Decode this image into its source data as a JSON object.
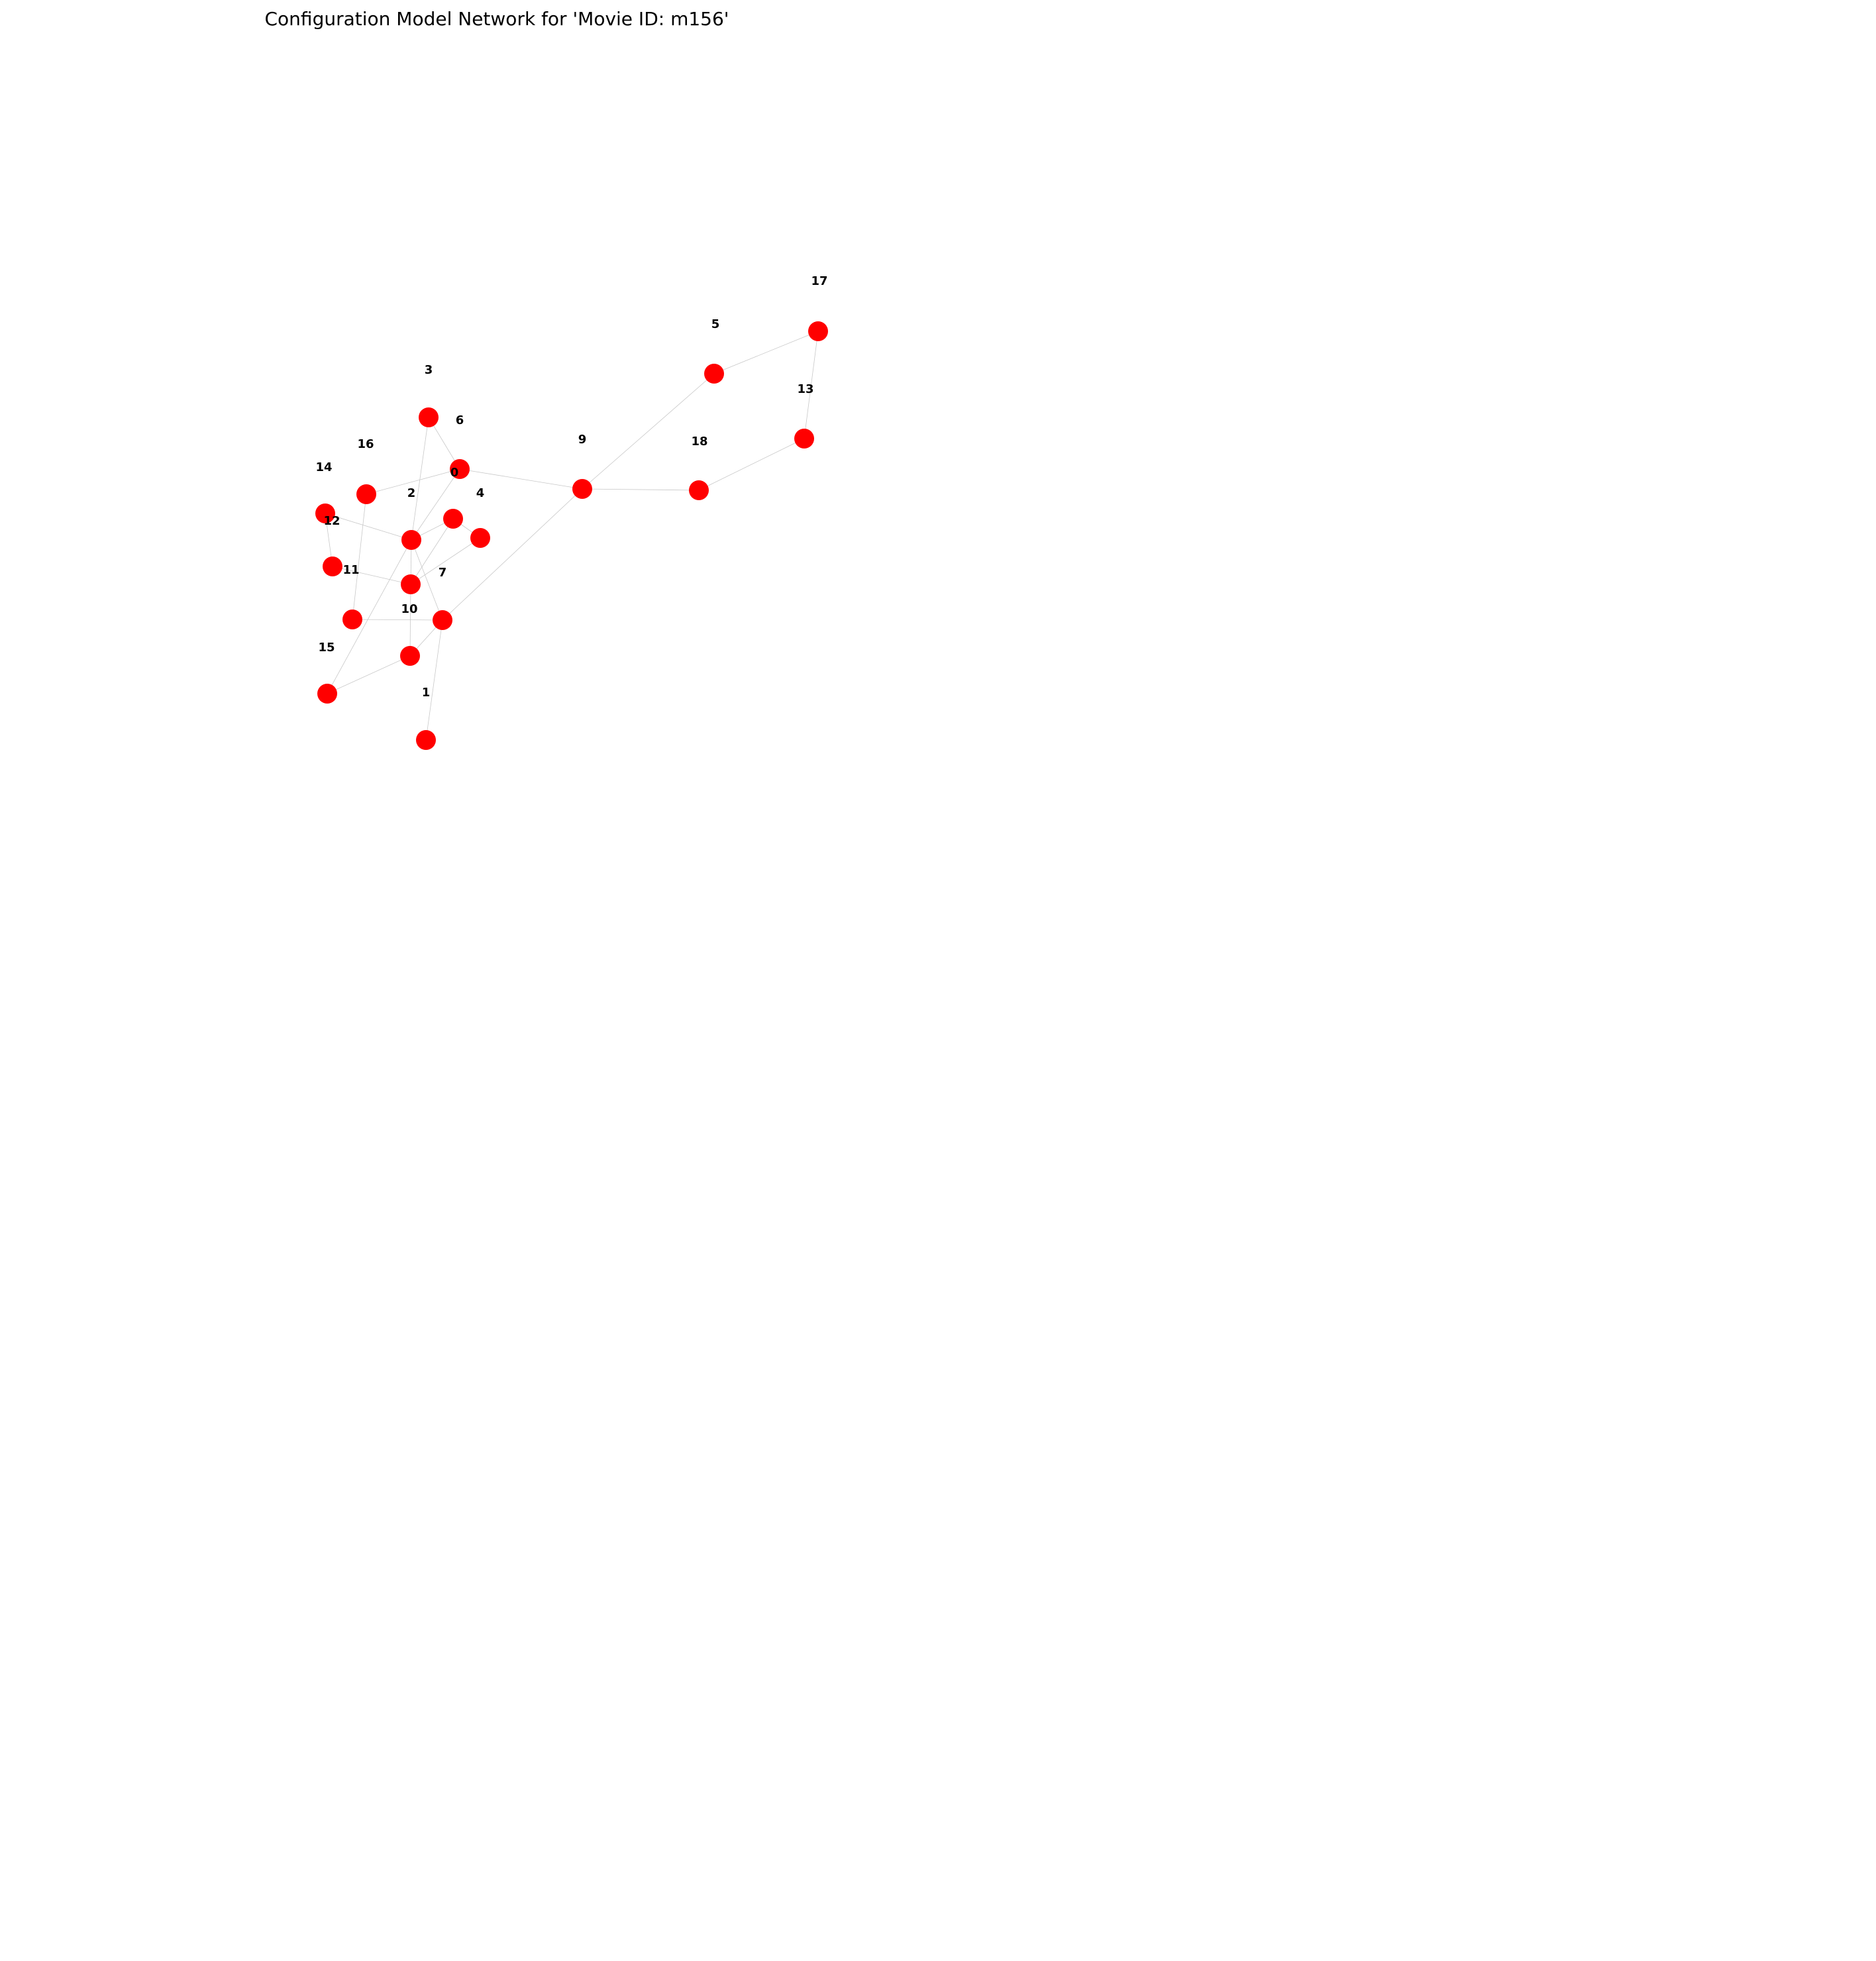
{
  "title": "Configuration Model Network for 'Movie ID: m156'",
  "style": {
    "node_color": "#ff0000",
    "edge_color": "#c8c8c8",
    "label_color": "#000000"
  },
  "nodes": [
    {
      "id": "0",
      "label": "0"
    },
    {
      "id": "1",
      "label": "1"
    },
    {
      "id": "2",
      "label": "2"
    },
    {
      "id": "3",
      "label": "3"
    },
    {
      "id": "4",
      "label": "4"
    },
    {
      "id": "5",
      "label": "5"
    },
    {
      "id": "6",
      "label": "6"
    },
    {
      "id": "7",
      "label": "7"
    },
    {
      "id": "8",
      "label": ""
    },
    {
      "id": "9",
      "label": "9"
    },
    {
      "id": "10",
      "label": "10"
    },
    {
      "id": "11",
      "label": "11"
    },
    {
      "id": "12",
      "label": "12"
    },
    {
      "id": "13",
      "label": "13"
    },
    {
      "id": "14",
      "label": "14"
    },
    {
      "id": "15",
      "label": "15"
    },
    {
      "id": "16",
      "label": "16"
    },
    {
      "id": "17",
      "label": "17"
    },
    {
      "id": "18",
      "label": "18"
    },
    {
      "id": "19",
      "label": ""
    },
    {
      "id": "20",
      "label": ""
    }
  ],
  "edges": [
    [
      "17",
      "5"
    ],
    [
      "17",
      "13"
    ],
    [
      "5",
      "9"
    ],
    [
      "13",
      "18"
    ],
    [
      "18",
      "9"
    ],
    [
      "9",
      "0"
    ],
    [
      "9",
      "10"
    ],
    [
      "3",
      "0"
    ],
    [
      "3",
      "2"
    ],
    [
      "0",
      "16"
    ],
    [
      "0",
      "2"
    ],
    [
      "16",
      "19"
    ],
    [
      "14",
      "2"
    ],
    [
      "14",
      "11"
    ],
    [
      "11",
      "7"
    ],
    [
      "2",
      "8"
    ],
    [
      "2",
      "7"
    ],
    [
      "2",
      "10"
    ],
    [
      "2",
      "15"
    ],
    [
      "8",
      "4"
    ],
    [
      "8",
      "7"
    ],
    [
      "4",
      "7"
    ],
    [
      "7",
      "20"
    ],
    [
      "19",
      "10"
    ],
    [
      "10",
      "1"
    ],
    [
      "10",
      "20"
    ],
    [
      "20",
      "15"
    ]
  ]
}
